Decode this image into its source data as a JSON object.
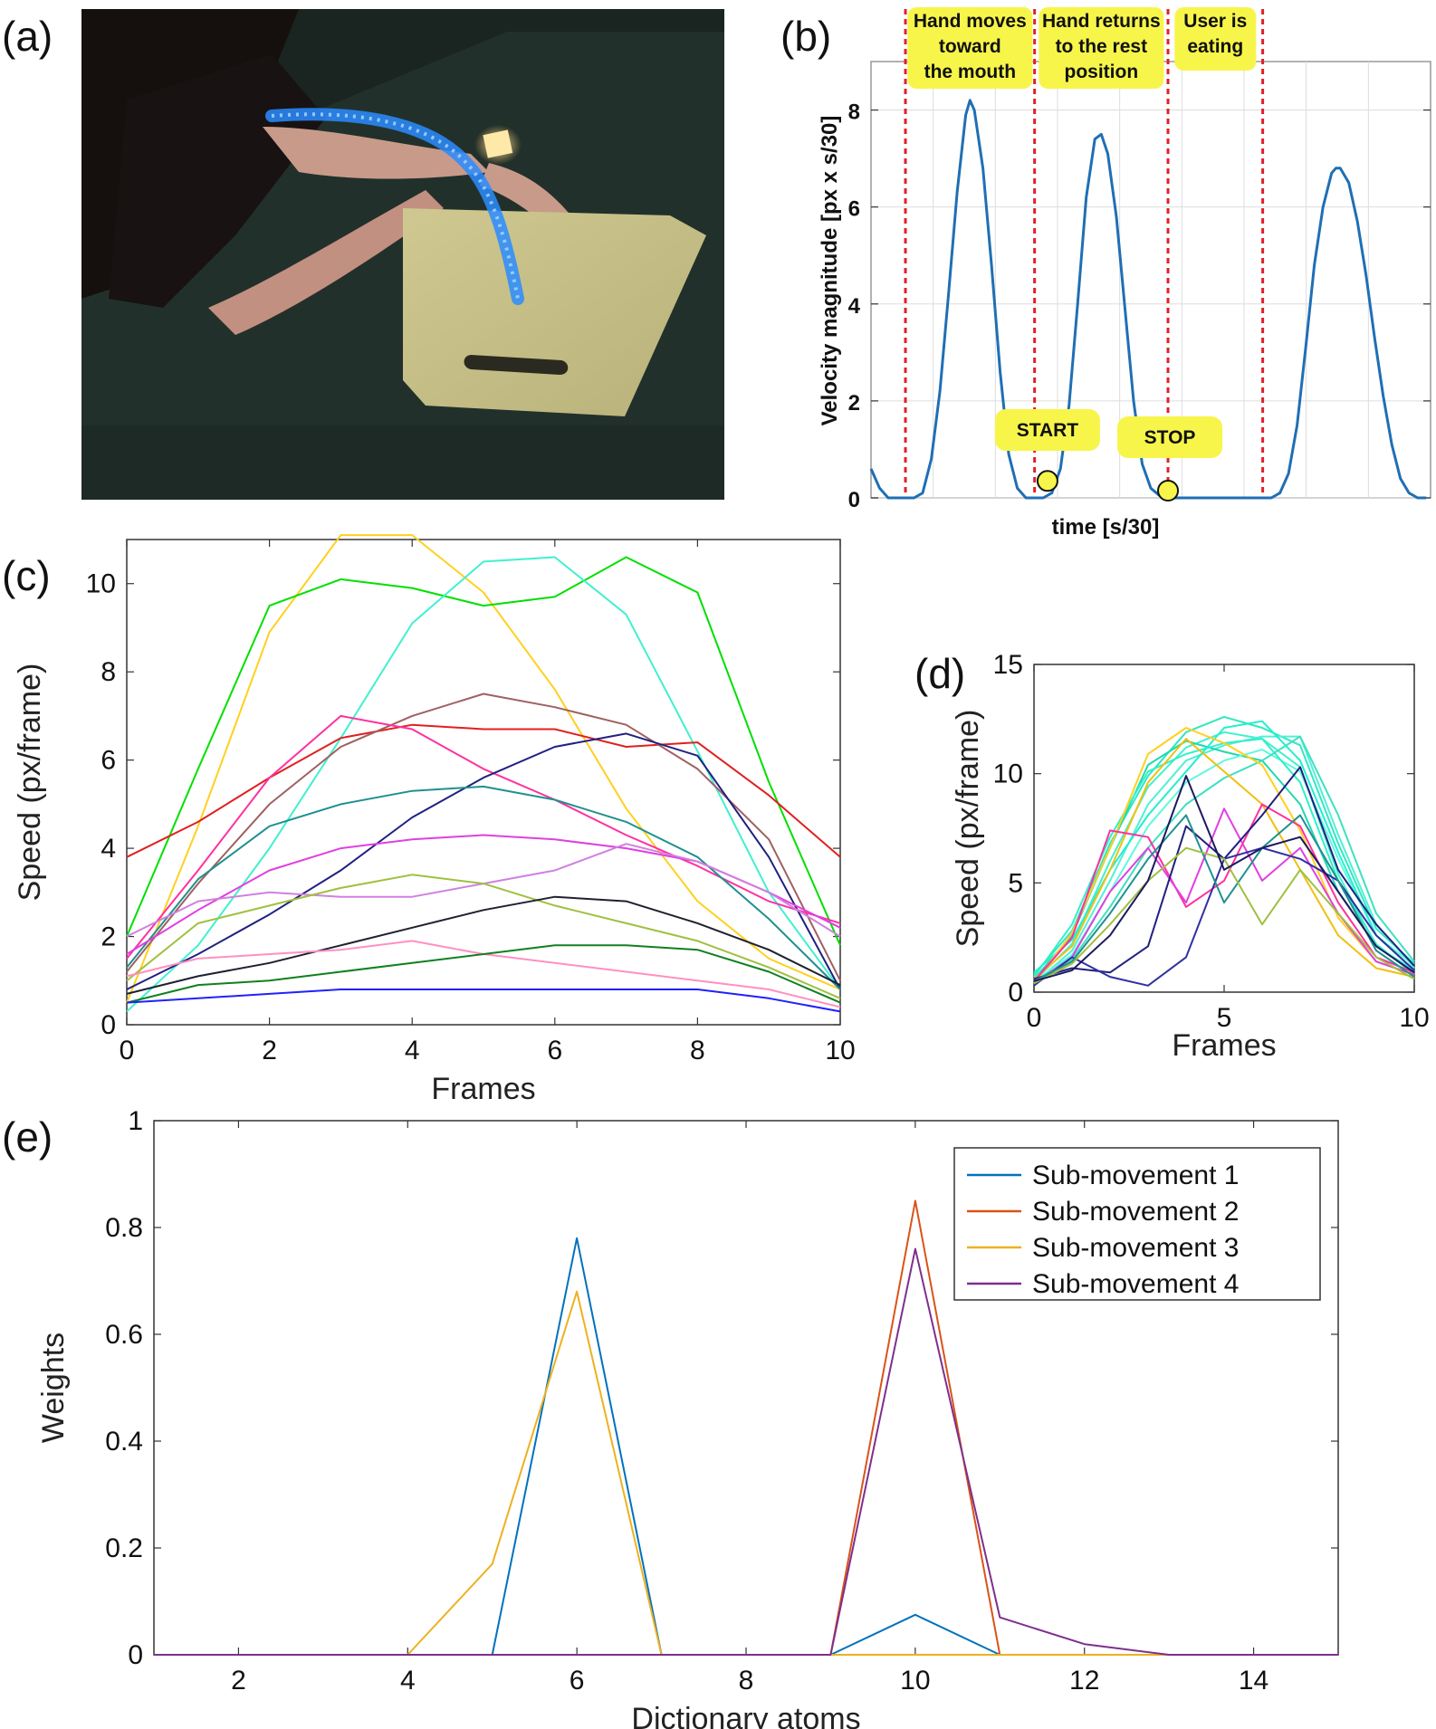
{
  "panels": {
    "a": {
      "label": "(a)"
    },
    "b": {
      "label": "(b)"
    },
    "c": {
      "label": "(c)"
    },
    "d": {
      "label": "(d)"
    },
    "e": {
      "label": "(e)"
    }
  },
  "colors": {
    "photo_background": "#1a2420",
    "blue_trace": "#2a8cff",
    "annotation_yellow": "#f7f54a",
    "divider_red": "#e0202a"
  },
  "chart_data": [
    {
      "panel": "b",
      "type": "line",
      "ylabel": "Velocity magnitude [px x s/30]",
      "xlabel": "time [s/30]",
      "xlim": [
        0,
        130
      ],
      "ylim": [
        0,
        9
      ],
      "yticks": [
        0,
        2,
        4,
        6,
        8
      ],
      "grid": true,
      "dividers": [
        8,
        38,
        69,
        91
      ],
      "annotations": [
        {
          "x": 23,
          "text": [
            "Hand moves",
            "toward",
            "the mouth"
          ]
        },
        {
          "x": 53.5,
          "text": [
            "Hand returns",
            "to the rest",
            "position"
          ]
        },
        {
          "x": 80,
          "text": [
            "User is",
            "eating"
          ]
        }
      ],
      "markers": [
        {
          "x": 41,
          "y": 0.2,
          "label": "START"
        },
        {
          "x": 69,
          "y": 0,
          "label": "STOP"
        }
      ],
      "series": [
        {
          "color": "#1f6fb4",
          "x": [
            0,
            2,
            4,
            6,
            8,
            10,
            12,
            14,
            16,
            18,
            20,
            22,
            23,
            24,
            26,
            28,
            30,
            32,
            34,
            36,
            38,
            40,
            42,
            44,
            46,
            48,
            50,
            52,
            53.5,
            55,
            57,
            59,
            61,
            63,
            65,
            67,
            69,
            71,
            73,
            75,
            77,
            79,
            81,
            83,
            85,
            87,
            89,
            91,
            93,
            95,
            97,
            99,
            101,
            103,
            105,
            107,
            108,
            109,
            111,
            113,
            115,
            117,
            119,
            121,
            123,
            125,
            127,
            129
          ],
          "y": [
            0.6,
            0.2,
            0,
            0,
            0,
            0,
            0.1,
            0.8,
            2.2,
            4.2,
            6.3,
            7.9,
            8.2,
            8.0,
            6.8,
            4.8,
            2.6,
            0.9,
            0.2,
            0,
            0,
            0,
            0.1,
            0.6,
            1.9,
            4.0,
            6.2,
            7.4,
            7.5,
            7.1,
            5.8,
            3.9,
            2.0,
            0.7,
            0.2,
            0.05,
            0,
            0,
            0,
            0,
            0,
            0,
            0,
            0,
            0,
            0,
            0,
            0,
            0,
            0.1,
            0.5,
            1.5,
            3.1,
            4.8,
            6.0,
            6.7,
            6.8,
            6.8,
            6.5,
            5.7,
            4.6,
            3.3,
            2.1,
            1.1,
            0.4,
            0.1,
            0,
            0
          ]
        }
      ]
    },
    {
      "panel": "c",
      "type": "line",
      "xlabel": "Frames",
      "ylabel": "Speed (px/frame)",
      "xlim": [
        0,
        10
      ],
      "ylim": [
        0,
        11
      ],
      "xticks": [
        0,
        2,
        4,
        6,
        8,
        10
      ],
      "yticks": [
        0,
        2,
        4,
        6,
        8,
        10
      ],
      "x": [
        0,
        1,
        2,
        3,
        4,
        5,
        6,
        7,
        8,
        9,
        10
      ],
      "series": [
        {
          "color": "#ffd020",
          "values": [
            0.5,
            4.5,
            8.9,
            11.1,
            11.1,
            9.8,
            7.6,
            4.9,
            2.8,
            1.5,
            0.8
          ]
        },
        {
          "color": "#00e000",
          "values": [
            2.0,
            5.8,
            9.5,
            10.1,
            9.9,
            9.5,
            9.7,
            10.6,
            9.8,
            5.5,
            1.8
          ]
        },
        {
          "color": "#40f0d0",
          "values": [
            0.3,
            1.8,
            4.0,
            6.5,
            9.1,
            10.5,
            10.6,
            9.3,
            6.2,
            3.0,
            0.8
          ]
        },
        {
          "color": "#e02020",
          "values": [
            3.8,
            4.6,
            5.6,
            6.5,
            6.8,
            6.7,
            6.7,
            6.3,
            6.4,
            5.2,
            3.8
          ]
        },
        {
          "color": "#a06060",
          "values": [
            1.2,
            3.2,
            5.0,
            6.3,
            7.0,
            7.5,
            7.2,
            6.8,
            5.8,
            4.2,
            1.0
          ]
        },
        {
          "color": "#ff30a0",
          "values": [
            1.5,
            3.5,
            5.6,
            7.0,
            6.7,
            5.8,
            5.1,
            4.3,
            3.6,
            2.8,
            2.3
          ]
        },
        {
          "color": "#202080",
          "values": [
            0.8,
            1.6,
            2.5,
            3.5,
            4.7,
            5.6,
            6.3,
            6.6,
            6.1,
            3.8,
            0.8
          ]
        },
        {
          "color": "#209090",
          "values": [
            1.3,
            3.3,
            4.5,
            5.0,
            5.3,
            5.4,
            5.1,
            4.6,
            3.8,
            2.4,
            0.8
          ]
        },
        {
          "color": "#e040e0",
          "values": [
            1.6,
            2.6,
            3.5,
            4.0,
            4.2,
            4.3,
            4.2,
            4.0,
            3.7,
            3.0,
            2.2
          ]
        },
        {
          "color": "#d080e0",
          "values": [
            2.0,
            2.8,
            3.0,
            2.9,
            2.9,
            3.2,
            3.5,
            4.1,
            3.7,
            3.0,
            2.0
          ]
        },
        {
          "color": "#a0c040",
          "values": [
            1.0,
            2.3,
            2.7,
            3.1,
            3.4,
            3.2,
            2.7,
            2.3,
            1.9,
            1.3,
            0.6
          ]
        },
        {
          "color": "#202030",
          "values": [
            0.7,
            1.1,
            1.4,
            1.8,
            2.2,
            2.6,
            2.9,
            2.8,
            2.3,
            1.7,
            0.9
          ]
        },
        {
          "color": "#ff90c0",
          "values": [
            1.1,
            1.5,
            1.6,
            1.7,
            1.9,
            1.6,
            1.4,
            1.2,
            1.0,
            0.8,
            0.4
          ]
        },
        {
          "color": "#108020",
          "values": [
            0.5,
            0.9,
            1.0,
            1.2,
            1.4,
            1.6,
            1.8,
            1.8,
            1.7,
            1.2,
            0.5
          ]
        },
        {
          "color": "#2020ff",
          "values": [
            0.5,
            0.6,
            0.7,
            0.8,
            0.8,
            0.8,
            0.8,
            0.8,
            0.8,
            0.6,
            0.3
          ]
        }
      ]
    },
    {
      "panel": "d",
      "type": "line",
      "xlabel": "Frames",
      "ylabel": "Speed (px/frame)",
      "xlim": [
        0,
        10
      ],
      "ylim": [
        0,
        15
      ],
      "xticks": [
        0,
        5,
        10
      ],
      "yticks": [
        0,
        5,
        10,
        15
      ],
      "x": [
        0,
        1,
        2,
        3,
        4,
        5,
        6,
        7,
        8,
        9,
        10
      ],
      "series": [
        {
          "color": "#40f0d0",
          "values": [
            0.5,
            2.2,
            6.0,
            9.4,
            11.2,
            11.9,
            11.6,
            10.3,
            5.4,
            2.1,
            1.0
          ]
        },
        {
          "color": "#30e8c0",
          "values": [
            0.8,
            2.8,
            6.8,
            9.9,
            11.9,
            12.6,
            12.1,
            11.3,
            6.8,
            2.9,
            1.3
          ]
        },
        {
          "color": "#50f0d8",
          "values": [
            0.4,
            1.9,
            5.1,
            8.6,
            10.6,
            11.3,
            11.7,
            11.7,
            7.2,
            3.1,
            1.1
          ]
        },
        {
          "color": "#20d8b0",
          "values": [
            0.6,
            2.6,
            6.6,
            10.4,
            11.5,
            11.0,
            10.6,
            8.6,
            4.6,
            2.1,
            0.9
          ]
        },
        {
          "color": "#60f8e0",
          "values": [
            0.5,
            1.7,
            4.6,
            7.6,
            9.6,
            10.6,
            11.1,
            10.1,
            6.1,
            2.6,
            1.2
          ]
        },
        {
          "color": "#30f0c8",
          "values": [
            0.7,
            3.1,
            7.1,
            10.1,
            10.9,
            11.4,
            11.6,
            9.6,
            5.1,
            2.2,
            0.8
          ]
        },
        {
          "color": "#40e0c0",
          "values": [
            0.5,
            1.5,
            3.9,
            6.6,
            8.6,
            9.8,
            10.6,
            11.7,
            8.1,
            3.6,
            1.4
          ]
        },
        {
          "color": "#20f0d0",
          "values": [
            0.9,
            2.4,
            5.6,
            8.1,
            10.1,
            12.1,
            12.4,
            10.6,
            6.4,
            2.6,
            1.0
          ]
        },
        {
          "color": "#ffd020",
          "values": [
            0.4,
            2.7,
            6.6,
            10.9,
            12.1,
            11.4,
            10.4,
            7.4,
            3.4,
            1.4,
            0.8
          ]
        },
        {
          "color": "#f0c010",
          "values": [
            0.6,
            2.1,
            5.6,
            9.6,
            11.6,
            10.1,
            8.6,
            5.6,
            2.6,
            1.1,
            0.7
          ]
        },
        {
          "color": "#ff30a0",
          "values": [
            0.5,
            2.5,
            7.4,
            7.1,
            3.9,
            5.1,
            8.6,
            7.6,
            4.1,
            1.6,
            0.9
          ]
        },
        {
          "color": "#e040e0",
          "values": [
            0.4,
            1.6,
            4.6,
            6.6,
            4.1,
            8.4,
            5.1,
            6.6,
            3.6,
            1.4,
            0.8
          ]
        },
        {
          "color": "#202080",
          "values": [
            0.6,
            1.1,
            0.9,
            2.1,
            7.6,
            6.1,
            8.1,
            10.3,
            5.6,
            3.1,
            1.2
          ]
        },
        {
          "color": "#3030a0",
          "values": [
            0.3,
            1.6,
            0.7,
            0.3,
            1.6,
            6.1,
            6.6,
            6.1,
            5.1,
            2.6,
            1.0
          ]
        },
        {
          "color": "#209090",
          "values": [
            0.5,
            1.4,
            3.6,
            6.1,
            8.1,
            4.1,
            6.6,
            8.1,
            5.1,
            1.9,
            0.7
          ]
        },
        {
          "color": "#a0c040",
          "values": [
            0.4,
            1.3,
            3.1,
            5.1,
            6.6,
            6.1,
            3.1,
            5.6,
            3.6,
            1.6,
            0.6
          ]
        },
        {
          "color": "#1a1a60",
          "values": [
            0.5,
            1.0,
            2.6,
            5.1,
            9.9,
            5.6,
            6.6,
            7.1,
            4.6,
            2.1,
            0.9
          ]
        }
      ]
    },
    {
      "panel": "e",
      "type": "line",
      "xlabel": "Dictionary atoms",
      "ylabel": "Weights",
      "xlim": [
        1,
        15
      ],
      "ylim": [
        0,
        1
      ],
      "xticks": [
        2,
        4,
        6,
        8,
        10,
        12,
        14
      ],
      "yticks": [
        0,
        0.2,
        0.4,
        0.6,
        0.8,
        1
      ],
      "legend_position": "top-right",
      "x": [
        1,
        2,
        3,
        4,
        5,
        6,
        7,
        8,
        9,
        10,
        11,
        12,
        13,
        14,
        15
      ],
      "series": [
        {
          "name": "Sub-movement 1",
          "color": "#0072bd",
          "values": [
            0,
            0,
            0,
            0,
            0,
            0.78,
            0,
            0,
            0,
            0.075,
            0,
            0,
            0,
            0,
            0
          ]
        },
        {
          "name": "Sub-movement 2",
          "color": "#d95319",
          "values": [
            0,
            0,
            0,
            0,
            0,
            0,
            0,
            0,
            0,
            0.85,
            0,
            0,
            0,
            0,
            0
          ]
        },
        {
          "name": "Sub-movement 3",
          "color": "#edb120",
          "values": [
            0,
            0,
            0,
            0,
            0.17,
            0.68,
            0,
            0,
            0,
            0,
            0,
            0,
            0,
            0,
            0
          ]
        },
        {
          "name": "Sub-movement 4",
          "color": "#7e2f8e",
          "values": [
            0,
            0,
            0,
            0,
            0,
            0,
            0,
            0,
            0,
            0.76,
            0.07,
            0.02,
            0,
            0,
            0
          ]
        }
      ]
    }
  ]
}
